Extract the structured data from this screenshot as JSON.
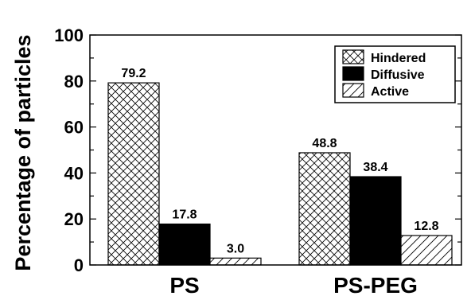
{
  "chart_data": {
    "type": "bar",
    "title": "",
    "xlabel": "",
    "ylabel": "Percentage of particles",
    "ylim": [
      0,
      100
    ],
    "yticks": [
      0,
      20,
      40,
      60,
      80,
      100
    ],
    "categories": [
      "PS",
      "PS-PEG"
    ],
    "series": [
      {
        "name": "Hindered",
        "pattern": "crosshatch",
        "values": [
          79.2,
          48.8
        ],
        "labels": [
          "79.2",
          "48.8"
        ]
      },
      {
        "name": "Diffusive",
        "pattern": "solid",
        "values": [
          17.8,
          38.4
        ],
        "labels": [
          "17.8",
          "38.4"
        ]
      },
      {
        "name": "Active",
        "pattern": "diagonal",
        "values": [
          3.0,
          12.8
        ],
        "labels": [
          "3.0",
          "12.8"
        ]
      }
    ],
    "legend_position": "top-right",
    "grid": false,
    "colors": {
      "bar_fill": "#000000",
      "outline": "#000000",
      "background": "#ffffff"
    }
  }
}
